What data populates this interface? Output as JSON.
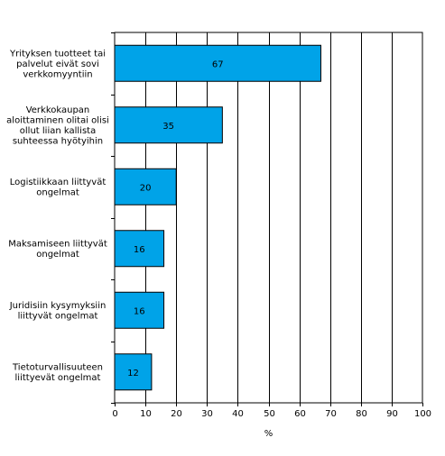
{
  "chart_data": {
    "type": "bar",
    "orientation": "horizontal",
    "categories": [
      [
        "Yrityksen tuotteet tai",
        "palvelut eivät sovi",
        "verkkomyyntiin"
      ],
      [
        "Verkkokaupan",
        "aloittaminen olitai olisi",
        "ollut liian kallista",
        "suhteessa hyötyihin"
      ],
      [
        "Logistiikkaan liittyvät",
        "ongelmat"
      ],
      [
        "Maksamiseen liittyvät",
        "ongelmat"
      ],
      [
        "Juridisiin kysymyksiin",
        "liittyvät ongelmat"
      ],
      [
        "Tietoturvallisuuteen",
        "liittyevät ongelmat"
      ]
    ],
    "values": [
      67,
      35,
      20,
      16,
      16,
      12
    ],
    "xlim": [
      0,
      100
    ],
    "xticks": [
      0,
      10,
      20,
      30,
      40,
      50,
      60,
      70,
      80,
      90,
      100
    ],
    "xlabel": "%",
    "ylabel": "",
    "title": "",
    "grid": "vertical",
    "bar_color": "#00a3e8",
    "bar_edge_color": "#000000"
  }
}
